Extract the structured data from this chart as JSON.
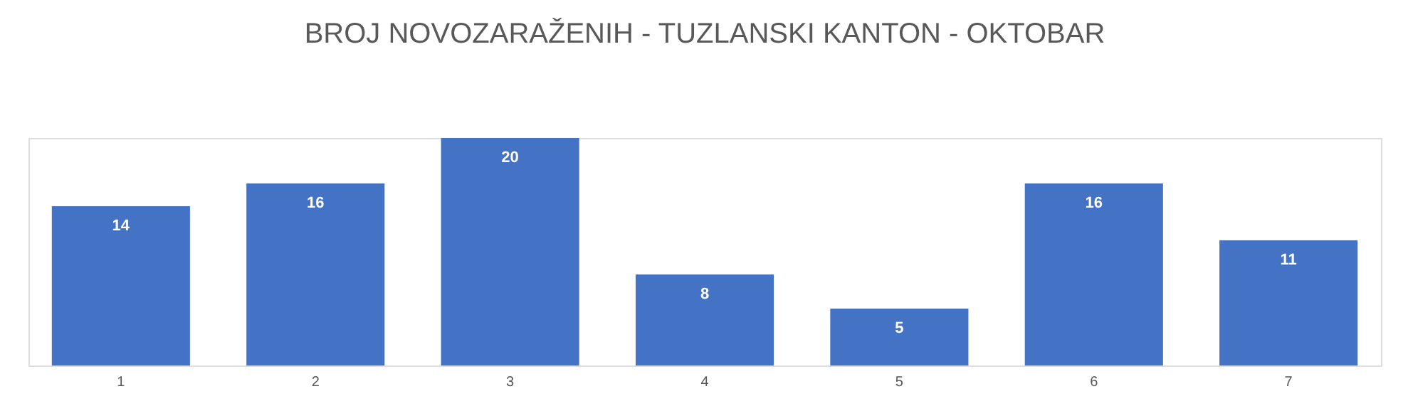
{
  "chart_data": {
    "type": "bar",
    "title": "BROJ NOVOZARAŽENIH - TUZLANSKI KANTON - OKTOBAR",
    "categories": [
      "1",
      "2",
      "3",
      "4",
      "5",
      "6",
      "7"
    ],
    "values": [
      14,
      16,
      20,
      8,
      5,
      16,
      11
    ],
    "color": "#4472c4",
    "data_labels": true
  }
}
